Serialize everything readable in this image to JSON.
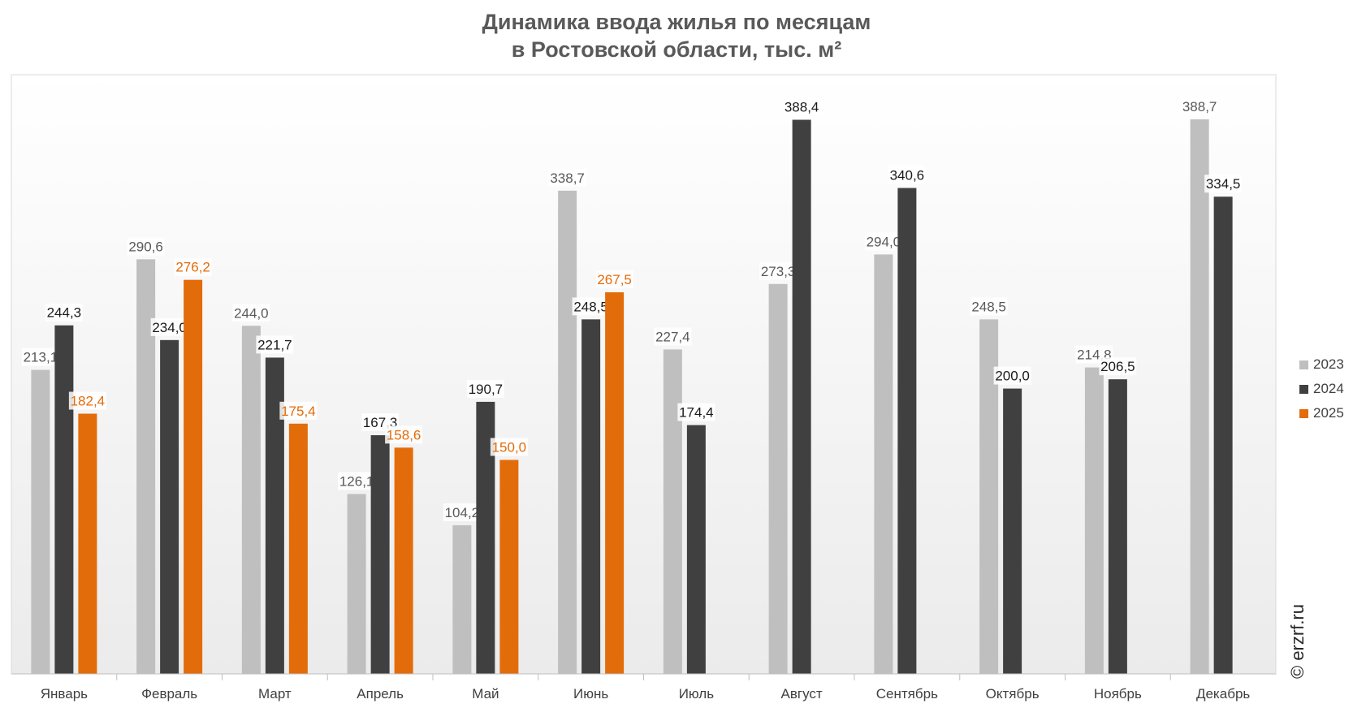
{
  "title": {
    "line1": "Динамика ввода жилья по месяцам",
    "line2": "в Ростовской области, тыс. м²"
  },
  "watermark": "© erzrf.ru",
  "chart_data": {
    "type": "bar",
    "title": "Динамика ввода жилья по месяцам в Ростовской области, тыс. м²",
    "xlabel": "",
    "ylabel": "",
    "ylim": [
      0,
      420
    ],
    "grid": false,
    "legend_position": "right",
    "categories": [
      "Январь",
      "Февраль",
      "Март",
      "Апрель",
      "Май",
      "Июнь",
      "Июль",
      "Август",
      "Сентябрь",
      "Октябрь",
      "Ноябрь",
      "Декабрь"
    ],
    "series": [
      {
        "name": "2023",
        "color": "#bfbfbf",
        "label_color": "#595959",
        "values": [
          213.1,
          290.6,
          244.0,
          126.1,
          104.2,
          338.7,
          227.4,
          273.3,
          294.0,
          248.5,
          214.8,
          388.7
        ],
        "labels": [
          "213,1",
          "290,6",
          "244,0",
          "126,1",
          "104,2",
          "338,7",
          "227,4",
          "273,3",
          "294,0",
          "248,5",
          "214,8",
          "388,7"
        ]
      },
      {
        "name": "2024",
        "color": "#404040",
        "label_color": "#1a1a1a",
        "values": [
          244.3,
          234.0,
          221.7,
          167.3,
          190.7,
          248.5,
          174.4,
          388.4,
          340.6,
          200.0,
          206.5,
          334.5
        ],
        "labels": [
          "244,3",
          "234,0",
          "221,7",
          "167,3",
          "190,7",
          "248,5",
          "174,4",
          "388,4",
          "340,6",
          "200,0",
          "206,5",
          "334,5"
        ]
      },
      {
        "name": "2025",
        "color": "#e36c0a",
        "label_color": "#e36c0a",
        "values": [
          182.4,
          276.2,
          175.4,
          158.6,
          150.0,
          267.5,
          null,
          null,
          null,
          null,
          null,
          null
        ],
        "labels": [
          "182,4",
          "276,2",
          "175,4",
          "158,6",
          "150,0",
          "267,5",
          null,
          null,
          null,
          null,
          null,
          null
        ]
      }
    ]
  }
}
